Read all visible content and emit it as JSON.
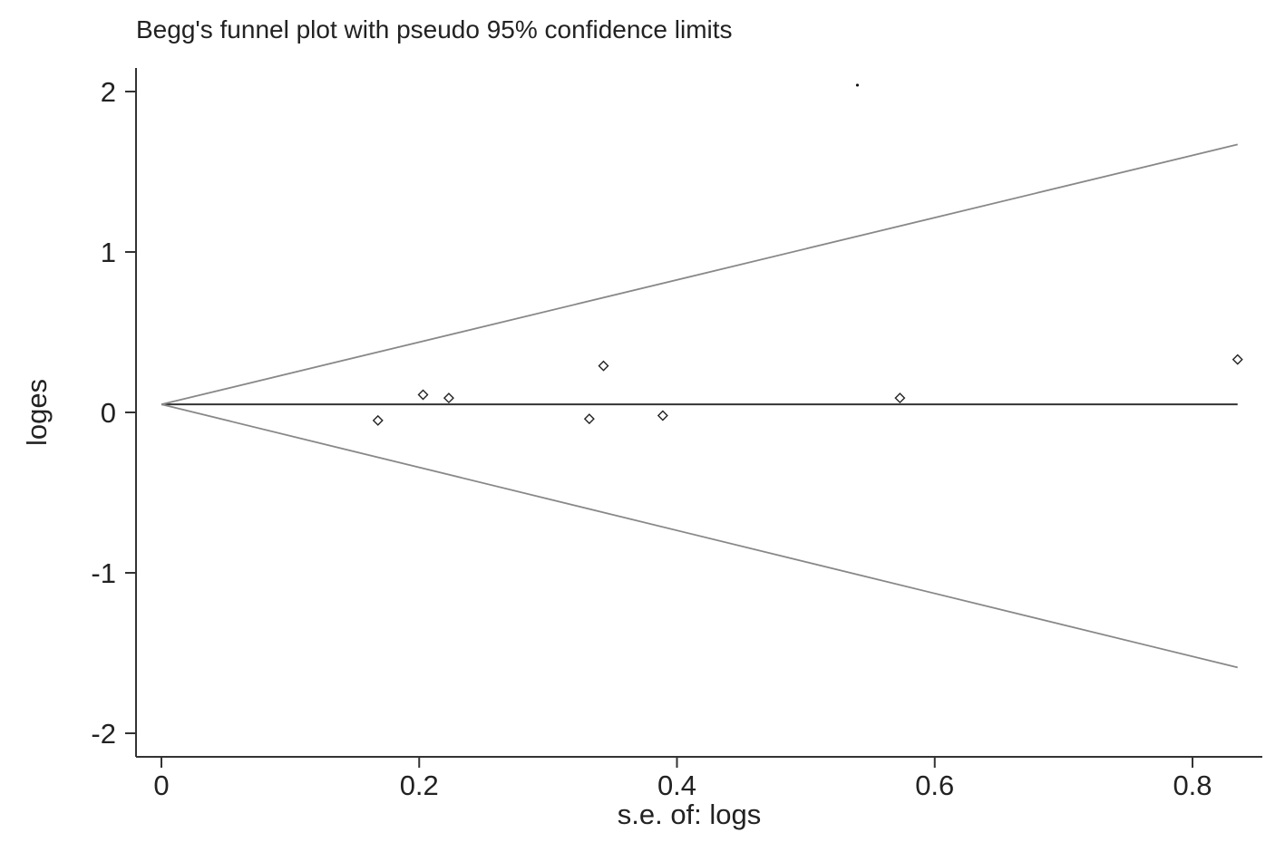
{
  "chart_data": {
    "type": "scatter",
    "title": "Begg's funnel plot with pseudo 95% confidence limits",
    "xlabel": "s.e. of: logs",
    "ylabel": "loges",
    "xlim": [
      -0.02,
      0.857
    ],
    "ylim": [
      -2.2,
      2.1
    ],
    "xticks": [
      0,
      0.2,
      0.4,
      0.6,
      0.8
    ],
    "xtick_labels": [
      "0",
      "0.2",
      "0.4",
      "0.6",
      "0.8"
    ],
    "yticks": [
      -2,
      -1,
      0,
      1,
      2
    ],
    "ytick_labels": [
      "-2",
      "-1",
      "0",
      "1",
      "2"
    ],
    "grid": false,
    "pooled_estimate": 0.05,
    "funnel_x_max": 0.835,
    "funnel_upper_end": 1.67,
    "funnel_lower_end": -1.59,
    "points": [
      {
        "x": 0.168,
        "y": -0.05
      },
      {
        "x": 0.203,
        "y": 0.11
      },
      {
        "x": 0.223,
        "y": 0.09
      },
      {
        "x": 0.332,
        "y": -0.04
      },
      {
        "x": 0.343,
        "y": 0.29
      },
      {
        "x": 0.389,
        "y": -0.02
      },
      {
        "x": 0.573,
        "y": 0.09
      },
      {
        "x": 0.835,
        "y": 0.33
      }
    ],
    "stray_dot": {
      "x": 0.54,
      "y": 2.04
    }
  }
}
